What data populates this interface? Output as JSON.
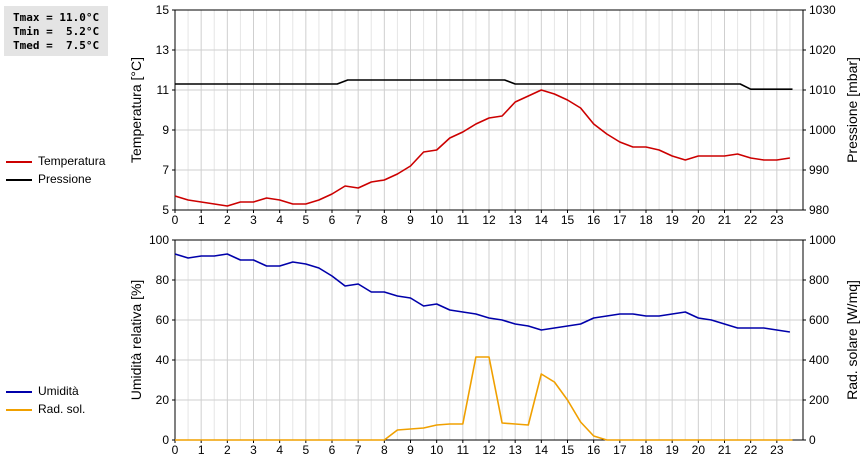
{
  "stats": {
    "tmax": "Tmax = 11.0°C",
    "tmin": "Tmin =  5.2°C",
    "tmed": "Tmed =  7.5°C"
  },
  "legend_top": [
    {
      "label": "Temperatura",
      "color": "#cc0000"
    },
    {
      "label": "Pressione",
      "color": "#000000"
    }
  ],
  "legend_bottom": [
    {
      "label": "Umidità",
      "color": "#0000aa"
    },
    {
      "label": "Rad. sol.",
      "color": "#f0a000"
    }
  ],
  "chart_data": [
    {
      "type": "line",
      "ylabel": "Temperatura [°C]",
      "y2label": "Pressione [mbar]",
      "ylim": [
        5,
        15
      ],
      "y2lim": [
        980,
        1030
      ],
      "xlim": [
        0,
        24
      ],
      "yticks": [
        5,
        7,
        9,
        11,
        13,
        15
      ],
      "y2ticks": [
        980,
        990,
        1000,
        1010,
        1020,
        1030
      ],
      "xticks": [
        0,
        1,
        2,
        3,
        4,
        5,
        6,
        7,
        8,
        9,
        10,
        11,
        12,
        13,
        14,
        15,
        16,
        17,
        18,
        19,
        20,
        21,
        22,
        23
      ],
      "grid": true,
      "series": [
        {
          "name": "Temperatura",
          "axis": "left",
          "color": "#cc0000",
          "x": [
            0,
            0.5,
            1,
            1.5,
            2,
            2.5,
            3,
            3.5,
            4,
            4.5,
            5,
            5.5,
            6,
            6.5,
            7,
            7.5,
            8,
            8.5,
            9,
            9.5,
            10,
            10.5,
            11,
            11.5,
            12,
            12.5,
            13,
            13.5,
            14,
            14.5,
            15,
            15.5,
            16,
            16.5,
            17,
            17.5,
            18,
            18.5,
            19,
            19.5,
            20,
            20.5,
            21,
            21.5,
            22,
            22.5,
            23,
            23.5
          ],
          "y": [
            5.7,
            5.5,
            5.4,
            5.3,
            5.2,
            5.4,
            5.4,
            5.6,
            5.5,
            5.3,
            5.3,
            5.5,
            5.8,
            6.2,
            6.1,
            6.4,
            6.5,
            6.8,
            7.2,
            7.9,
            8.0,
            8.6,
            8.9,
            9.3,
            9.6,
            9.7,
            10.4,
            10.7,
            11.0,
            10.8,
            10.5,
            10.1,
            9.3,
            8.8,
            8.4,
            8.15,
            8.15,
            8.0,
            7.7,
            7.5,
            7.7,
            7.7,
            7.7,
            7.8,
            7.6,
            7.5,
            7.5,
            7.6
          ]
        },
        {
          "name": "Pressione",
          "axis": "right",
          "color": "#000000",
          "x": [
            0,
            6.2,
            6.6,
            12.6,
            13,
            21.6,
            22,
            23.6
          ],
          "y": [
            1011.5,
            1011.5,
            1012.5,
            1012.5,
            1011.5,
            1011.5,
            1010.2,
            1010.2
          ]
        }
      ]
    },
    {
      "type": "line",
      "ylabel": "Umidità relativa [%]",
      "y2label": "Rad. solare [W/mq]",
      "ylim": [
        0,
        100
      ],
      "y2lim": [
        0,
        1000
      ],
      "xlim": [
        0,
        24
      ],
      "yticks": [
        0,
        20,
        40,
        60,
        80,
        100
      ],
      "y2ticks": [
        0,
        200,
        400,
        600,
        800,
        1000
      ],
      "xticks": [
        0,
        1,
        2,
        3,
        4,
        5,
        6,
        7,
        8,
        9,
        10,
        11,
        12,
        13,
        14,
        15,
        16,
        17,
        18,
        19,
        20,
        21,
        22,
        23
      ],
      "grid": true,
      "series": [
        {
          "name": "Umidità",
          "axis": "left",
          "color": "#0000aa",
          "x": [
            0,
            0.5,
            1,
            1.5,
            2,
            2.5,
            3,
            3.5,
            4,
            4.5,
            5,
            5.5,
            6,
            6.5,
            7,
            7.5,
            8,
            8.5,
            9,
            9.5,
            10,
            10.5,
            11,
            11.5,
            12,
            12.5,
            13,
            13.5,
            14,
            14.5,
            15,
            15.5,
            16,
            16.5,
            17,
            17.5,
            18,
            18.5,
            19,
            19.5,
            20,
            20.5,
            21,
            21.5,
            22,
            22.5,
            23,
            23.5
          ],
          "y": [
            93,
            91,
            92,
            92,
            93,
            90,
            90,
            87,
            87,
            89,
            88,
            86,
            82,
            77,
            78,
            74,
            74,
            72,
            71,
            67,
            68,
            65,
            64,
            63,
            61,
            60,
            58,
            57,
            55,
            56,
            57,
            58,
            61,
            62,
            63,
            63,
            62,
            62,
            63,
            64,
            61,
            60,
            58,
            56,
            56,
            56,
            55,
            54
          ]
        },
        {
          "name": "Rad. sol.",
          "axis": "right",
          "color": "#f0a000",
          "x": [
            0,
            8,
            8.5,
            9,
            9.5,
            10,
            10.5,
            11,
            11.5,
            12,
            12.5,
            13,
            13.5,
            14,
            14.5,
            15,
            15.5,
            16,
            16.5,
            23.6
          ],
          "y": [
            0,
            0,
            50,
            55,
            60,
            75,
            80,
            80,
            415,
            415,
            85,
            80,
            75,
            330,
            290,
            200,
            90,
            20,
            0,
            0
          ]
        }
      ]
    }
  ]
}
